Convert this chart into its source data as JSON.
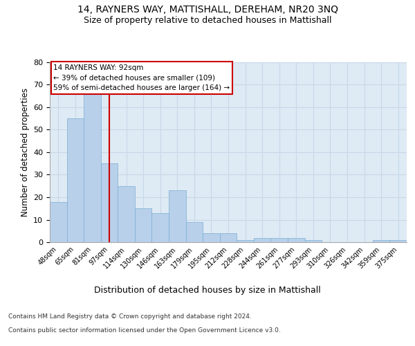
{
  "title": "14, RAYNERS WAY, MATTISHALL, DEREHAM, NR20 3NQ",
  "subtitle": "Size of property relative to detached houses in Mattishall",
  "xlabel": "Distribution of detached houses by size in Mattishall",
  "ylabel": "Number of detached properties",
  "categories": [
    "48sqm",
    "65sqm",
    "81sqm",
    "97sqm",
    "114sqm",
    "130sqm",
    "146sqm",
    "163sqm",
    "179sqm",
    "195sqm",
    "212sqm",
    "228sqm",
    "244sqm",
    "261sqm",
    "277sqm",
    "293sqm",
    "310sqm",
    "326sqm",
    "342sqm",
    "359sqm",
    "375sqm"
  ],
  "values": [
    18,
    55,
    66,
    35,
    25,
    15,
    13,
    23,
    9,
    4,
    4,
    1,
    2,
    2,
    2,
    1,
    0,
    0,
    0,
    1,
    1
  ],
  "bar_color": "#b8d0ea",
  "bar_edge_color": "#7aadd4",
  "vline_x": 3.0,
  "vline_color": "#cc0000",
  "annotation_text": "14 RAYNERS WAY: 92sqm\n← 39% of detached houses are smaller (109)\n59% of semi-detached houses are larger (164) →",
  "annotation_box_color": "#cc0000",
  "ylim": [
    0,
    80
  ],
  "yticks": [
    0,
    10,
    20,
    30,
    40,
    50,
    60,
    70,
    80
  ],
  "grid_color": "#c8d8e8",
  "background_color": "#deeaf4",
  "footer_line1": "Contains HM Land Registry data © Crown copyright and database right 2024.",
  "footer_line2": "Contains public sector information licensed under the Open Government Licence v3.0."
}
